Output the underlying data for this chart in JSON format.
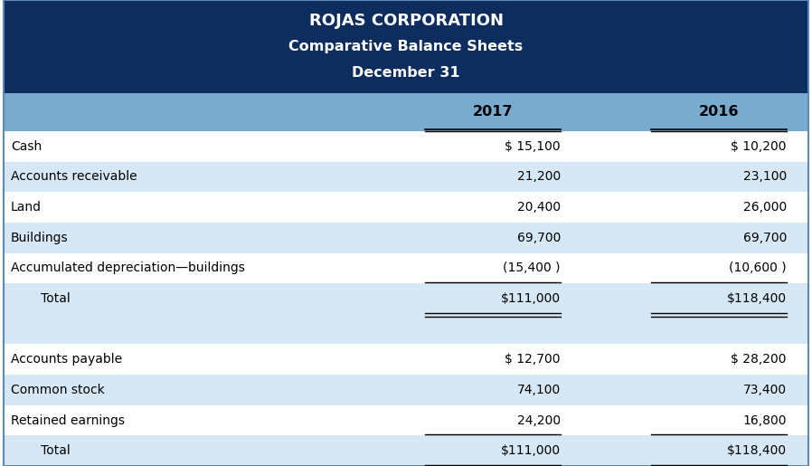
{
  "title_line1": "ROJAS CORPORATION",
  "title_line2": "Comparative Balance Sheets",
  "title_line3": "December 31",
  "header_bg": "#0d2d5e",
  "col_header_bg": "#7aabcf",
  "row_bg_light": "#d6e8f5",
  "row_bg_white": "#ffffff",
  "col_header_year1": "2017",
  "col_header_year2": "2016",
  "rows": [
    {
      "label": "Cash",
      "v2017": "$ 15,100",
      "v2016": "$ 10,200",
      "indent": false,
      "underline_top": true,
      "underline_bot": false,
      "double_under": false,
      "bg": "white"
    },
    {
      "label": "Accounts receivable",
      "v2017": "21,200",
      "v2016": "23,100",
      "indent": false,
      "underline_top": false,
      "underline_bot": false,
      "double_under": false,
      "bg": "light"
    },
    {
      "label": "Land",
      "v2017": "20,400",
      "v2016": "26,000",
      "indent": false,
      "underline_top": false,
      "underline_bot": false,
      "double_under": false,
      "bg": "white"
    },
    {
      "label": "Buildings",
      "v2017": "69,700",
      "v2016": "69,700",
      "indent": false,
      "underline_top": false,
      "underline_bot": false,
      "double_under": false,
      "bg": "light"
    },
    {
      "label": "Accumulated depreciation—buildings",
      "v2017": "(15,400 )",
      "v2016": "(10,600 )",
      "indent": false,
      "underline_top": false,
      "underline_bot": true,
      "double_under": false,
      "bg": "white"
    },
    {
      "label": "   Total",
      "v2017": "$111,000",
      "v2016": "$118,400",
      "indent": true,
      "underline_top": false,
      "underline_bot": true,
      "double_under": true,
      "bg": "light"
    },
    {
      "label": "",
      "v2017": "",
      "v2016": "",
      "indent": false,
      "underline_top": false,
      "underline_bot": false,
      "double_under": false,
      "bg": "light"
    },
    {
      "label": "Accounts payable",
      "v2017": "$ 12,700",
      "v2016": "$ 28,200",
      "indent": false,
      "underline_top": false,
      "underline_bot": false,
      "double_under": false,
      "bg": "white"
    },
    {
      "label": "Common stock",
      "v2017": "74,100",
      "v2016": "73,400",
      "indent": false,
      "underline_top": false,
      "underline_bot": false,
      "double_under": false,
      "bg": "light"
    },
    {
      "label": "Retained earnings",
      "v2017": "24,200",
      "v2016": "16,800",
      "indent": false,
      "underline_top": false,
      "underline_bot": true,
      "double_under": false,
      "bg": "white"
    },
    {
      "label": "   Total",
      "v2017": "$111,000",
      "v2016": "$118,400",
      "indent": true,
      "underline_top": false,
      "underline_bot": true,
      "double_under": true,
      "bg": "light"
    }
  ],
  "font_size_title1": 13,
  "font_size_title23": 11.5,
  "font_size_body": 10,
  "font_size_header": 11.5,
  "fig_width": 8.98,
  "fig_height": 5.15,
  "dpi": 100
}
